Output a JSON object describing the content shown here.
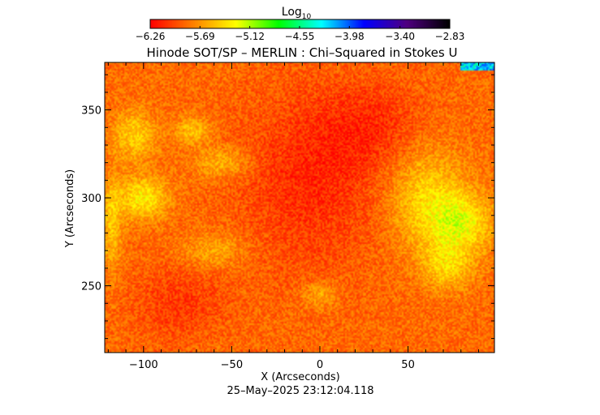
{
  "chart_data": {
    "type": "heatmap",
    "title": "Hinode SOT/SP – MERLIN : Chi–Squared in Stokes U",
    "xlabel": "X (Arcseconds)",
    "ylabel": "Y (Arcseconds)",
    "timestamp": "25–May–2025 23:12:04.118",
    "xlim": [
      -122,
      99
    ],
    "ylim": [
      212,
      377
    ],
    "x_ticks": [
      -100,
      -50,
      0,
      50
    ],
    "x_tick_labels": [
      "−100",
      "−50",
      "0",
      "50"
    ],
    "y_ticks": [
      250,
      300,
      350
    ],
    "y_tick_labels": [
      "250",
      "300",
      "350"
    ],
    "colorbar": {
      "label_main": "Log",
      "label_sub": "10",
      "range": [
        -6.26,
        -2.83
      ],
      "ticks": [
        -6.26,
        -5.69,
        -5.12,
        -4.55,
        -3.98,
        -3.4,
        -2.83
      ],
      "tick_labels": [
        "−6.26",
        "−5.69",
        "−5.12",
        "−4.55",
        "−3.98",
        "−3.40",
        "−2.83"
      ],
      "colormap": [
        "#ff0000",
        "#ff8000",
        "#ffff00",
        "#00ff00",
        "#00ffff",
        "#0000ff",
        "#500080",
        "#000000"
      ]
    },
    "field": {
      "background_log10": -5.85,
      "noise_amplitude": 0.18,
      "bright_regions": [
        {
          "x": -100,
          "y": 300,
          "rx": 14,
          "ry": 12,
          "level": -5.35
        },
        {
          "x": -105,
          "y": 335,
          "rx": 12,
          "ry": 14,
          "level": -5.45
        },
        {
          "x": -72,
          "y": 338,
          "rx": 10,
          "ry": 8,
          "level": -5.5
        },
        {
          "x": -55,
          "y": 320,
          "rx": 16,
          "ry": 9,
          "level": -5.55
        },
        {
          "x": -118,
          "y": 285,
          "rx": 6,
          "ry": 25,
          "level": -5.5
        },
        {
          "x": -60,
          "y": 270,
          "rx": 18,
          "ry": 10,
          "level": -5.6
        },
        {
          "x": 60,
          "y": 300,
          "rx": 22,
          "ry": 30,
          "level": -5.45
        },
        {
          "x": 80,
          "y": 285,
          "rx": 18,
          "ry": 18,
          "level": -5.35
        },
        {
          "x": 72,
          "y": 260,
          "rx": 14,
          "ry": 12,
          "level": -5.5
        },
        {
          "x": 0,
          "y": 245,
          "rx": 10,
          "ry": 8,
          "level": -5.6
        }
      ],
      "dark_regions": [
        {
          "x": -5,
          "y": 310,
          "rx": 40,
          "ry": 50,
          "level": -6.1
        },
        {
          "x": -80,
          "y": 240,
          "rx": 25,
          "ry": 20,
          "level": -6.05
        },
        {
          "x": 30,
          "y": 340,
          "rx": 30,
          "ry": 25,
          "level": -6.05
        }
      ],
      "edge_strip": {
        "y_from": 372,
        "x_from": 80,
        "level": -4.2
      }
    }
  }
}
